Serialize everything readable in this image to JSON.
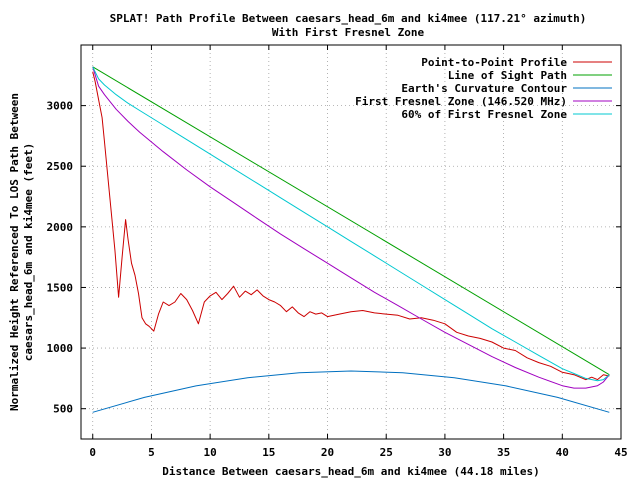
{
  "chart_data": {
    "type": "line",
    "title": "SPLAT! Path Profile Between caesars_head_6m and ki4mee (117.21° azimuth)",
    "subtitle": "With First Fresnel Zone",
    "xlabel": "Distance Between caesars_head_6m and ki4mee (44.18 miles)",
    "ylabel_line1": "Normalized Height Referenced To LOS Path Between",
    "ylabel_line2": "caesars_head_6m and ki4mee (feet)",
    "xlim": [
      -1,
      45
    ],
    "ylim": [
      250,
      3500
    ],
    "xticks": [
      0,
      5,
      10,
      15,
      20,
      25,
      30,
      35,
      40,
      45
    ],
    "yticks": [
      500,
      1000,
      1500,
      2000,
      2500,
      3000
    ],
    "grid": true,
    "legend_position": "top-right",
    "series": [
      {
        "name": "Point-to-Point Profile",
        "color": "#cc0000",
        "x": [
          0,
          0.2,
          0.5,
          0.8,
          1.0,
          1.3,
          1.6,
          1.9,
          2.2,
          2.5,
          2.8,
          3.0,
          3.3,
          3.6,
          3.9,
          4.2,
          4.5,
          4.8,
          5.2,
          5.6,
          6.0,
          6.5,
          7.0,
          7.5,
          8.0,
          8.5,
          9.0,
          9.5,
          10.0,
          10.5,
          11.0,
          11.5,
          12.0,
          12.5,
          13.0,
          13.5,
          14.0,
          14.5,
          15.0,
          15.5,
          16.0,
          16.5,
          17.0,
          17.5,
          18.0,
          18.5,
          19.0,
          19.5,
          20.0,
          21.0,
          22.0,
          23.0,
          24.0,
          25.0,
          26.0,
          27.0,
          28.0,
          29.0,
          30.0,
          31.0,
          32.0,
          33.0,
          34.0,
          35.0,
          36.0,
          37.0,
          38.0,
          39.0,
          40.0,
          40.5,
          41.0,
          41.5,
          42.0,
          42.5,
          43.0,
          43.5,
          44.0
        ],
        "y": [
          3280,
          3200,
          3050,
          2900,
          2700,
          2400,
          2100,
          1800,
          1420,
          1750,
          2060,
          1900,
          1700,
          1600,
          1450,
          1250,
          1200,
          1180,
          1140,
          1280,
          1380,
          1350,
          1380,
          1450,
          1400,
          1310,
          1200,
          1380,
          1430,
          1460,
          1400,
          1450,
          1510,
          1420,
          1470,
          1440,
          1480,
          1430,
          1400,
          1380,
          1350,
          1300,
          1340,
          1290,
          1260,
          1300,
          1280,
          1290,
          1260,
          1280,
          1300,
          1310,
          1290,
          1280,
          1270,
          1240,
          1250,
          1230,
          1200,
          1130,
          1100,
          1080,
          1050,
          1000,
          980,
          920,
          880,
          850,
          800,
          790,
          780,
          760,
          740,
          760,
          740,
          780,
          770
        ]
      },
      {
        "name": "Line of Sight Path",
        "color": "#00a000",
        "x": [
          0,
          44
        ],
        "y": [
          3320,
          780
        ]
      },
      {
        "name": "Earth's Curvature Contour",
        "color": "#0070c0",
        "x": [
          0,
          4.4,
          8.8,
          13.2,
          17.6,
          22.0,
          26.4,
          30.8,
          35.2,
          39.6,
          44.0
        ],
        "y": [
          470,
          593,
          688,
          756,
          797,
          811,
          797,
          756,
          688,
          593,
          470
        ]
      },
      {
        "name": "First Fresnel Zone (146.520 MHz)",
        "color": "#a000c0",
        "x": [
          0,
          0.5,
          1,
          2,
          3,
          4,
          6,
          8,
          10,
          12,
          14,
          16,
          18,
          20,
          22,
          24,
          26,
          28,
          30,
          32,
          34,
          36,
          38,
          40,
          41,
          42,
          43,
          43.5,
          44
        ],
        "y": [
          3320,
          3160,
          3090,
          2970,
          2870,
          2780,
          2620,
          2470,
          2330,
          2200,
          2070,
          1940,
          1820,
          1700,
          1580,
          1460,
          1350,
          1240,
          1130,
          1030,
          930,
          840,
          760,
          690,
          670,
          670,
          690,
          720,
          780
        ]
      },
      {
        "name": "60% of First Fresnel Zone",
        "color": "#00c8d0",
        "x": [
          0,
          0.5,
          1,
          2,
          3,
          4,
          6,
          8,
          10,
          12,
          14,
          16,
          18,
          20,
          22,
          24,
          26,
          28,
          30,
          32,
          34,
          36,
          38,
          40,
          41,
          42,
          43,
          43.5,
          44
        ],
        "y": [
          3320,
          3220,
          3170,
          3090,
          3020,
          2960,
          2840,
          2720,
          2600,
          2480,
          2360,
          2240,
          2120,
          2000,
          1880,
          1760,
          1640,
          1520,
          1400,
          1280,
          1160,
          1050,
          940,
          830,
          790,
          750,
          730,
          740,
          780
        ]
      }
    ]
  }
}
